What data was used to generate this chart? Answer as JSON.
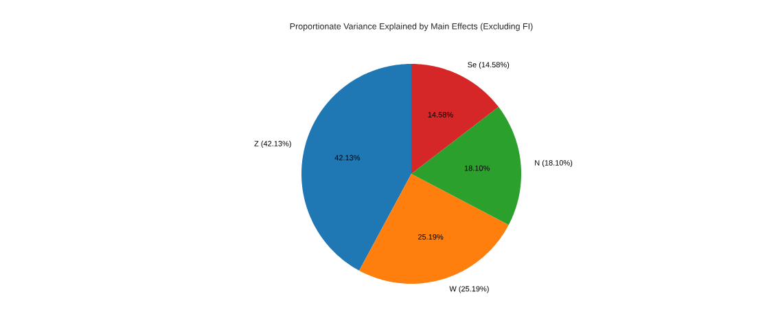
{
  "chart_data": {
    "type": "pie",
    "title": "Proportionate Variance Explained by Main Effects (Excluding FI)",
    "categories": [
      "Z (42.13%)",
      "W (25.19%)",
      "N (18.10%)",
      "Se (14.58%)"
    ],
    "values": [
      42.13,
      25.19,
      18.1,
      14.58
    ],
    "value_labels": [
      "42.13%",
      "25.19%",
      "18.10%",
      "14.58%"
    ],
    "colors": [
      "#1f77b4",
      "#ff7f0e",
      "#2ca02c",
      "#d62728"
    ]
  }
}
